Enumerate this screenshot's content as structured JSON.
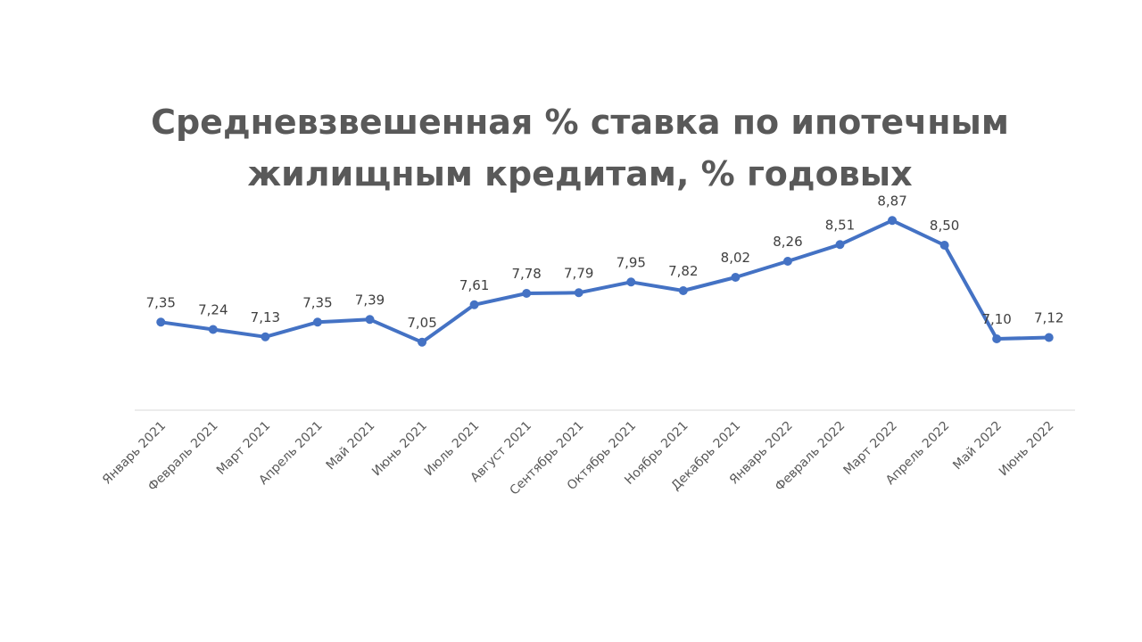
{
  "chart_data": {
    "type": "line",
    "title": [
      "Средневзвешенная % ставка по ипотечным",
      "жилищным кредитам, % годовых"
    ],
    "xlabel": "",
    "ylabel": "",
    "ylim": [
      5.5,
      9.5
    ],
    "grid": false,
    "legend": false,
    "line_color": "#4472C4",
    "axis_color": "#D9D9D9",
    "categories": [
      "Январь 2021",
      "Февраль 2021",
      "Март 2021",
      "Апрель 2021",
      "Май 2021",
      "Июнь 2021",
      "Июль 2021",
      "Август 2021",
      "Сентябрь 2021",
      "Октябрь 2021",
      "Ноябрь 2021",
      "Декабрь 2021",
      "Январь 2022",
      "Февраль 2022",
      "Март 2022",
      "Апрель 2022",
      "Май 2022",
      "Июнь 2022"
    ],
    "values": [
      7.35,
      7.24,
      7.13,
      7.35,
      7.39,
      7.05,
      7.61,
      7.78,
      7.79,
      7.95,
      7.82,
      8.02,
      8.26,
      8.51,
      8.87,
      8.5,
      7.1,
      7.12
    ],
    "data_labels": [
      "7,35",
      "7,24",
      "7,13",
      "7,35",
      "7,39",
      "7,05",
      "7,61",
      "7,78",
      "7,79",
      "7,95",
      "7,82",
      "8,02",
      "8,26",
      "8,51",
      "8,87",
      "8,50",
      "7,10",
      "7,12"
    ]
  }
}
